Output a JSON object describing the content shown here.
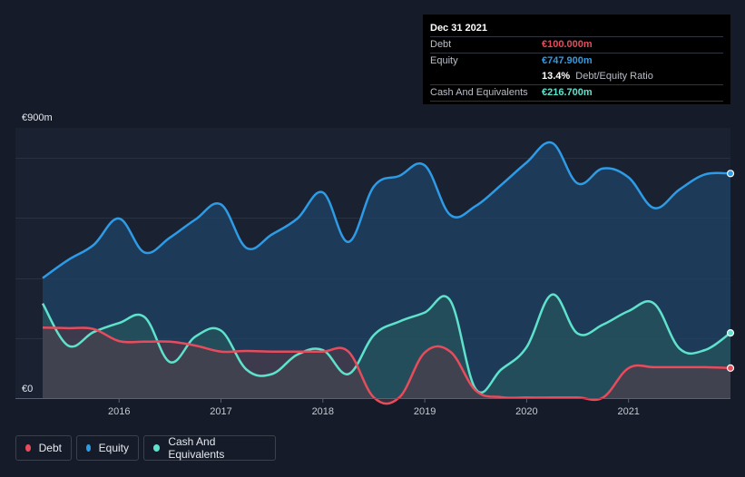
{
  "tooltip": {
    "date": "Dec 31 2021",
    "debt_label": "Debt",
    "debt_value": "€100.000m",
    "equity_label": "Equity",
    "equity_value": "€747.900m",
    "ratio_pct": "13.4%",
    "ratio_label": "Debt/Equity Ratio",
    "cash_label": "Cash And Equivalents",
    "cash_value": "€216.700m"
  },
  "legend": {
    "debt": "Debt",
    "equity": "Equity",
    "cash": "Cash And Equivalents"
  },
  "colors": {
    "debt": "#e84b5c",
    "equity": "#2e9be6",
    "cash": "#5fe2cc",
    "background": "#151b28"
  },
  "chart_data": {
    "type": "area",
    "y_top_label": "€900m",
    "y_bottom_label": "€0",
    "ylim": [
      0,
      900
    ],
    "xlim": [
      2015.25,
      2022.0
    ],
    "x_ticks": [
      2016,
      2017,
      2018,
      2019,
      2020,
      2021
    ],
    "x_tick_labels": [
      "2016",
      "2017",
      "2018",
      "2019",
      "2020",
      "2021"
    ],
    "gridlines": [
      0,
      200,
      400,
      600,
      800
    ],
    "series": [
      {
        "name": "Equity",
        "key": "equity",
        "x": [
          2015.25,
          2015.5,
          2015.75,
          2016.0,
          2016.25,
          2016.5,
          2016.75,
          2017.0,
          2017.25,
          2017.5,
          2017.75,
          2018.0,
          2018.25,
          2018.5,
          2018.75,
          2019.0,
          2019.25,
          2019.5,
          2019.75,
          2020.0,
          2020.25,
          2020.5,
          2020.75,
          2021.0,
          2021.25,
          2021.5,
          2021.75,
          2022.0
        ],
        "values": [
          400,
          460,
          510,
          598,
          485,
          535,
          595,
          645,
          500,
          545,
          598,
          685,
          520,
          705,
          740,
          775,
          610,
          640,
          710,
          785,
          850,
          715,
          765,
          735,
          633,
          695,
          745,
          748
        ]
      },
      {
        "name": "Cash And Equivalents",
        "key": "cash",
        "x": [
          2015.25,
          2015.5,
          2015.75,
          2016.0,
          2016.25,
          2016.5,
          2016.75,
          2017.0,
          2017.25,
          2017.5,
          2017.75,
          2018.0,
          2018.25,
          2018.5,
          2018.75,
          2019.0,
          2019.25,
          2019.5,
          2019.75,
          2020.0,
          2020.25,
          2020.5,
          2020.75,
          2021.0,
          2021.25,
          2021.5,
          2021.75,
          2022.0
        ],
        "values": [
          315,
          175,
          220,
          250,
          270,
          120,
          205,
          225,
          95,
          80,
          145,
          160,
          80,
          210,
          255,
          285,
          325,
          30,
          95,
          170,
          345,
          215,
          245,
          290,
          315,
          165,
          160,
          217
        ]
      },
      {
        "name": "Debt",
        "key": "debt",
        "x": [
          2015.25,
          2015.5,
          2015.75,
          2016.0,
          2016.25,
          2016.5,
          2016.75,
          2017.0,
          2017.25,
          2017.5,
          2017.75,
          2018.0,
          2018.25,
          2018.5,
          2018.75,
          2019.0,
          2019.25,
          2019.5,
          2019.75,
          2020.0,
          2020.25,
          2020.5,
          2020.75,
          2021.0,
          2021.25,
          2021.5,
          2021.75,
          2022.0
        ],
        "values": [
          235,
          233,
          230,
          190,
          188,
          188,
          175,
          155,
          157,
          155,
          155,
          155,
          155,
          2,
          2,
          152,
          155,
          25,
          3,
          2,
          2,
          2,
          2,
          100,
          103,
          103,
          103,
          100
        ]
      }
    ],
    "legend_position": "bottom-left"
  }
}
